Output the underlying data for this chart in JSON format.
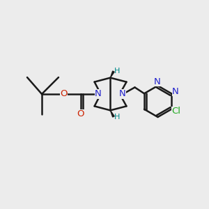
{
  "bg_color": "#ececec",
  "bond_color": "#1a1a1a",
  "N_color": "#2222cc",
  "O_color": "#cc2200",
  "Cl_color": "#22aa22",
  "H_color": "#008888",
  "figsize": [
    3.0,
    3.0
  ],
  "dpi": 100,
  "xlim": [
    0,
    10
  ],
  "ylim": [
    0,
    10
  ]
}
